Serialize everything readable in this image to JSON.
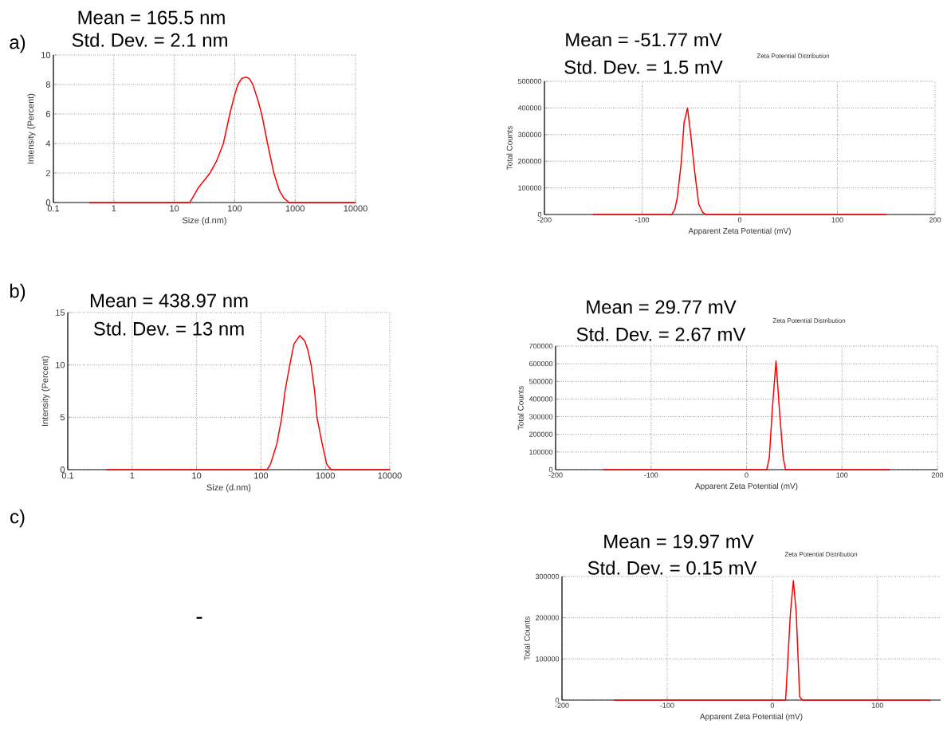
{
  "chart_data": [
    {
      "type": "line",
      "xlabel": "Size (d.nm)",
      "ylabel": "Intensity (Percent)",
      "log": "x",
      "grid": true,
      "xlim": [
        0.1,
        10000
      ],
      "ylim": [
        0,
        10
      ],
      "xticks": [
        0.1,
        1,
        10,
        100,
        1000,
        10000
      ],
      "yticks": [
        0,
        2,
        4,
        6,
        8,
        10
      ],
      "annotations": [
        "Mean = 165.5 nm",
        "Std. Dev. = 2.1 nm",
        "a)"
      ],
      "series": [
        {
          "color": "#ff0000",
          "x": [
            0.4,
            18,
            20,
            25,
            30,
            39,
            50,
            65,
            83,
            100,
            113,
            130,
            153,
            175,
            200,
            240,
            280,
            350,
            445,
            550,
            650,
            800,
            10000
          ],
          "values": [
            0,
            0,
            0.3,
            1.0,
            1.4,
            2.0,
            2.8,
            4.0,
            6.0,
            7.3,
            8.0,
            8.4,
            8.5,
            8.4,
            8.0,
            7.0,
            6.0,
            4.0,
            2.0,
            0.8,
            0.3,
            0,
            0
          ]
        }
      ]
    },
    {
      "type": "line",
      "title": "Zeta Potential Distribution",
      "xlabel": "Apparent Zeta Potential (mV)",
      "ylabel": "Total Counts",
      "grid": true,
      "xlim": [
        -200,
        200
      ],
      "ylim": [
        0,
        500000
      ],
      "xticks": [
        -200,
        -100,
        0,
        100,
        200
      ],
      "yticks": [
        0,
        100000,
        200000,
        300000,
        400000,
        500000
      ],
      "annotations": [
        "Mean = -51.77 mV",
        "Std. Dev. = 1.5 mV"
      ],
      "series": [
        {
          "color": "#ff0000",
          "x": [
            -150,
            -69.6,
            -66.5,
            -64,
            -60,
            -57,
            -53.5,
            -49.8,
            -46,
            -42,
            -38,
            -35,
            150
          ],
          "values": [
            0,
            0,
            20000,
            62000,
            192000,
            345000,
            400000,
            286000,
            156000,
            39000,
            8000,
            0,
            0
          ]
        }
      ]
    },
    {
      "type": "line",
      "xlabel": "Size (d.nm)",
      "ylabel": "Intensity (Percent)",
      "log": "x",
      "grid": true,
      "xlim": [
        0.1,
        10000
      ],
      "ylim": [
        0,
        15
      ],
      "xticks": [
        0.1,
        1,
        10,
        100,
        1000,
        10000
      ],
      "yticks": [
        0,
        5,
        10,
        15
      ],
      "annotations": [
        "Mean = 438.97 nm",
        "Std. Dev. = 13 nm",
        "b)"
      ],
      "series": [
        {
          "color": "#ff0000",
          "x": [
            0.4,
            124,
            140,
            177,
            210,
            236,
            280,
            325,
            400,
            478,
            530,
            600,
            680,
            740,
            890,
            1050,
            1230,
            10000
          ],
          "values": [
            0,
            0,
            0.5,
            2.5,
            5,
            7.5,
            10,
            12,
            12.8,
            12.3,
            11.5,
            10,
            7.5,
            5,
            2.5,
            0.5,
            0,
            0
          ]
        }
      ]
    },
    {
      "type": "line",
      "title": "Zeta Potential Distribution",
      "xlabel": "Apparent Zeta Potential (mV)",
      "ylabel": "Total Counts",
      "grid": true,
      "xlim": [
        -200,
        200
      ],
      "ylim": [
        0,
        700000
      ],
      "xticks": [
        -200,
        -100,
        0,
        100,
        200
      ],
      "yticks": [
        0,
        100000,
        200000,
        300000,
        400000,
        500000,
        600000,
        700000
      ],
      "annotations": [
        "Mean = 29.77 mV",
        "Std. Dev. = 2.67 mV"
      ],
      "series": [
        {
          "color": "#ff0000",
          "x": [
            -150,
            21.2,
            23.9,
            26.9,
            30.9,
            34.5,
            38.4,
            40.8,
            150
          ],
          "values": [
            0,
            0,
            70000,
            335000,
            615000,
            335000,
            70000,
            0,
            0
          ]
        }
      ]
    },
    {
      "type": "other",
      "annotations": [
        "c)",
        "-"
      ]
    },
    {
      "type": "line",
      "title": "Zeta Potential Distribution",
      "xlabel": "Apparent Zeta Potential (mV)",
      "ylabel": "Total Counts",
      "grid": true,
      "xlim": [
        -200,
        160
      ],
      "ylim": [
        0,
        300000
      ],
      "xticks": [
        -200,
        -100,
        0,
        100
      ],
      "yticks": [
        0,
        100000,
        200000,
        300000
      ],
      "annotations": [
        "Mean = 19.97 mV",
        "Std. Dev. = 0.15 mV"
      ],
      "series": [
        {
          "color": "#ff0000",
          "x": [
            -150,
            12.6,
            17.2,
            20,
            22.7,
            26,
            28.7,
            150
          ],
          "values": [
            0,
            0,
            212000,
            290000,
            212000,
            8000,
            0,
            0
          ]
        }
      ]
    }
  ]
}
